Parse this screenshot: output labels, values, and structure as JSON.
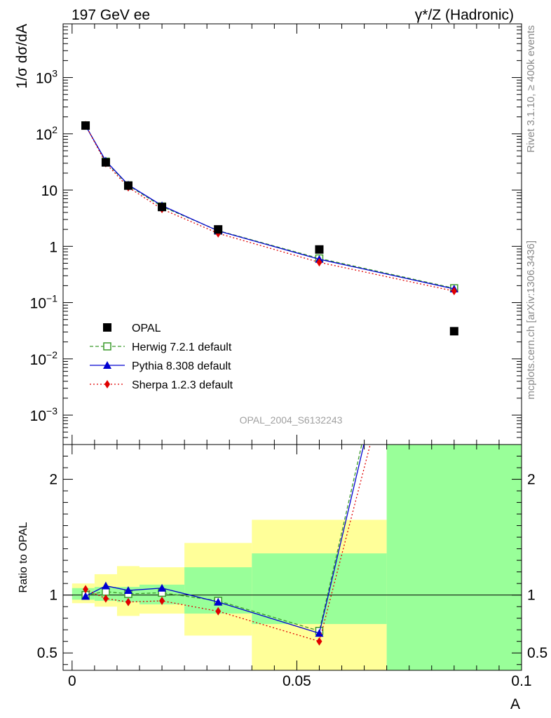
{
  "header": {
    "left": "197 GeV ee",
    "right": "γ*/Z (Hadronic)"
  },
  "side_text": {
    "rivet": "Rivet 3.1.10, ≥ 400k events",
    "mcplots": "mcplots.cern.ch [arXiv:1306.3436]"
  },
  "watermark": "OPAL_2004_S6132243",
  "chart_data": {
    "type": "line",
    "xlabel": "A",
    "x_ticks": [
      "0",
      "0.05",
      "0.1"
    ],
    "xlim": [
      -0.002,
      0.1
    ],
    "main": {
      "ylabel": "1/σ dσ/dA",
      "yscale": "log",
      "ylim": [
        0.0003,
        9000
      ],
      "y_tick_labels": [
        {
          "v": 0.001,
          "base": "10",
          "exp": "−3"
        },
        {
          "v": 0.01,
          "base": "10",
          "exp": "−2"
        },
        {
          "v": 0.1,
          "base": "10",
          "exp": "−1"
        },
        {
          "v": 1,
          "base": "1",
          "exp": ""
        },
        {
          "v": 10,
          "base": "10",
          "exp": ""
        },
        {
          "v": 100,
          "base": "10",
          "exp": "2"
        },
        {
          "v": 1000,
          "base": "10",
          "exp": "3"
        }
      ]
    },
    "ratio": {
      "ylabel": "Ratio to OPAL",
      "ylim": [
        0.35,
        2.3
      ],
      "y_ticks": [
        "0.5",
        "1",
        "2"
      ]
    },
    "bins": [
      {
        "lo": 0.0,
        "hi": 0.005
      },
      {
        "lo": 0.005,
        "hi": 0.01
      },
      {
        "lo": 0.01,
        "hi": 0.015
      },
      {
        "lo": 0.015,
        "hi": 0.025
      },
      {
        "lo": 0.025,
        "hi": 0.04
      },
      {
        "lo": 0.04,
        "hi": 0.07
      },
      {
        "lo": 0.07,
        "hi": 0.1
      }
    ],
    "data": {
      "name": "OPAL",
      "x": [
        0.003,
        0.0075,
        0.0125,
        0.02,
        0.0325,
        0.055,
        0.085
      ],
      "y": [
        140,
        31,
        12,
        5.0,
        2.0,
        0.88,
        0.031
      ]
    },
    "bands": {
      "stat_lo": [
        0.96,
        0.95,
        0.94,
        0.92,
        0.84,
        0.75,
        0.0
      ],
      "stat_hi": [
        1.06,
        1.07,
        1.07,
        1.09,
        1.24,
        1.36,
        9.0
      ],
      "tot_lo": [
        0.93,
        0.9,
        0.82,
        0.84,
        0.65,
        0.0,
        0.0
      ],
      "tot_hi": [
        1.1,
        1.18,
        1.25,
        1.24,
        1.45,
        1.65,
        9.0
      ]
    },
    "series": [
      {
        "name": "Herwig 7.2.1 default",
        "color": "#3a9a2a",
        "marker": "open-square",
        "dash": "5,3",
        "y": [
          141,
          32,
          12.1,
          5.1,
          1.9,
          0.61,
          0.18
        ],
        "ratio": [
          1.0,
          1.03,
          1.01,
          1.02,
          0.95,
          0.69,
          5.8
        ]
      },
      {
        "name": "Pythia 8.308 default",
        "color": "#0000d0",
        "marker": "triangle",
        "dash": "",
        "y": [
          139,
          33,
          12.4,
          5.3,
          1.88,
          0.59,
          0.175
        ],
        "ratio": [
          0.99,
          1.08,
          1.04,
          1.06,
          0.94,
          0.67,
          5.6
        ]
      },
      {
        "name": "Sherpa 1.2.3 default",
        "color": "#e00000",
        "marker": "diamond",
        "dash": "2,3",
        "y": [
          143,
          30,
          11.2,
          4.6,
          1.7,
          0.52,
          0.16
        ],
        "ratio": [
          1.05,
          0.97,
          0.94,
          0.95,
          0.86,
          0.6,
          5.1
        ]
      }
    ]
  }
}
